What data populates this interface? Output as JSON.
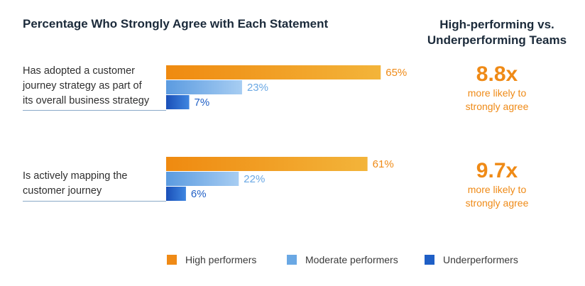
{
  "colors": {
    "high": "#ef8a16",
    "moderate": "#6aa8e4",
    "under": "#1f5fc6"
  },
  "chart_data": {
    "type": "bar",
    "orientation": "horizontal",
    "title": "Percentage Who Strongly Agree with Each Statement",
    "categories": [
      "Has adopted a customer journey strategy as part of its overall business strategy",
      "Is actively mapping the customer journey"
    ],
    "series": [
      {
        "name": "High performers",
        "values": [
          65,
          61
        ]
      },
      {
        "name": "Moderate performers",
        "values": [
          23,
          22
        ]
      },
      {
        "name": "Underperformers",
        "values": [
          7,
          6
        ]
      }
    ],
    "value_suffix": "%",
    "xlim": [
      0,
      100
    ],
    "legend": "bottom",
    "grid": false
  },
  "side": {
    "title_line1": "High-performing vs.",
    "title_line2": "Underperforming Teams",
    "ratios": [
      {
        "value": "8.8x",
        "line1": "more likely to",
        "line2": "strongly agree"
      },
      {
        "value": "9.7x",
        "line1": "more likely to",
        "line2": "strongly agree"
      }
    ]
  },
  "statements": [
    {
      "lines": [
        "Has adopted a customer",
        "journey strategy as part of",
        "its overall business strategy"
      ]
    },
    {
      "lines": [
        "Is actively mapping the",
        "customer journey"
      ]
    }
  ]
}
